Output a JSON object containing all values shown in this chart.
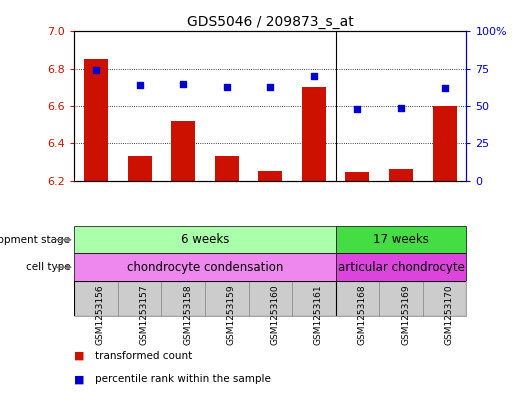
{
  "title": "GDS5046 / 209873_s_at",
  "samples": [
    "GSM1253156",
    "GSM1253157",
    "GSM1253158",
    "GSM1253159",
    "GSM1253160",
    "GSM1253161",
    "GSM1253168",
    "GSM1253169",
    "GSM1253170"
  ],
  "bar_values": [
    6.85,
    6.335,
    6.52,
    6.335,
    6.255,
    6.7,
    6.245,
    6.265,
    6.6
  ],
  "dot_values": [
    74,
    64,
    65,
    63,
    63,
    70,
    48,
    49,
    62
  ],
  "ylim_left": [
    6.2,
    7.0
  ],
  "ylim_right": [
    0,
    100
  ],
  "yticks_left": [
    6.2,
    6.4,
    6.6,
    6.8,
    7.0
  ],
  "yticks_right": [
    0,
    25,
    50,
    75,
    100
  ],
  "bar_color": "#cc1100",
  "dot_color": "#0000cc",
  "bar_bottom": 6.2,
  "separator_at": 5.5,
  "dev_stage_groups": [
    {
      "label": "6 weeks",
      "start": 0,
      "end": 6,
      "color": "#aaffaa"
    },
    {
      "label": "17 weeks",
      "start": 6,
      "end": 9,
      "color": "#44dd44"
    }
  ],
  "cell_type_groups": [
    {
      "label": "chondrocyte condensation",
      "start": 0,
      "end": 6,
      "color": "#ee88ee"
    },
    {
      "label": "articular chondrocyte",
      "start": 6,
      "end": 9,
      "color": "#dd44dd"
    }
  ],
  "dev_stage_label": "development stage",
  "cell_type_label": "cell type",
  "legend_bar_label": "transformed count",
  "legend_dot_label": "percentile rank within the sample",
  "label_box_color": "#cccccc",
  "label_box_border": "#888888",
  "arrow_color": "#777777"
}
